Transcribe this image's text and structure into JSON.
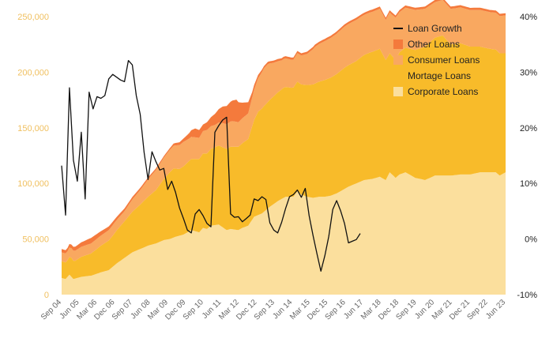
{
  "chart_data": {
    "type": "area",
    "x": [
      "Sep 04",
      "Jun 05",
      "Mar 06",
      "Dec 06",
      "Sep 07",
      "Jun 08",
      "Mar 09",
      "Dec 09",
      "Sep 10",
      "Jun 11",
      "Mar 12",
      "Dec 12",
      "Sep 13",
      "Jun 14",
      "Mar 15",
      "Dec 15",
      "Sep 16",
      "Jun 17",
      "Mar 18",
      "Dec 18",
      "Sep 19",
      "Jun 20",
      "Mar 21",
      "Dec 21",
      "Sep 22",
      "Jun 23"
    ],
    "ylim_left": [
      0,
      250000
    ],
    "yticks_left": [
      "0",
      "50,000",
      "100,000",
      "150,000",
      "200,000",
      "250,000"
    ],
    "ylim_right": [
      -10,
      40
    ],
    "yticks_right": [
      "-10%",
      "0%",
      "10%",
      "20%",
      "30%",
      "40%"
    ],
    "grid": false,
    "legend_placement": "top-right",
    "stack_order": [
      "Corporate Loans",
      "Mortage Loans",
      "Consumer Loans",
      "Other Loans"
    ],
    "series": [
      {
        "name": "Other Loans",
        "kind": "area",
        "color": "#f47a3c",
        "points": [
          [
            0,
            3000
          ],
          [
            3,
            3000
          ],
          [
            6,
            3500
          ],
          [
            10,
            4000
          ],
          [
            15,
            5000
          ],
          [
            20,
            4000
          ],
          [
            26,
            3000
          ],
          [
            32,
            2500
          ],
          [
            40,
            2000
          ],
          [
            50,
            1500
          ],
          [
            55,
            1500
          ],
          [
            62,
            3000
          ],
          [
            65,
            5000
          ],
          [
            68,
            8000
          ],
          [
            72,
            6000
          ],
          [
            76,
            8000
          ],
          [
            80,
            12000
          ],
          [
            82,
            15000
          ],
          [
            85,
            17000
          ],
          [
            89,
            20000
          ],
          [
            90,
            18000
          ],
          [
            92,
            14000
          ],
          [
            95,
            10000
          ],
          [
            97,
            5000
          ],
          [
            100,
            3000
          ],
          [
            103,
            2000
          ]
        ]
      },
      {
        "name": "Consumer Loans",
        "kind": "area",
        "color": "#f9a860",
        "points": [
          [
            0,
            8000
          ],
          [
            3,
            8000
          ],
          [
            6,
            9000
          ],
          [
            10,
            9000
          ],
          [
            15,
            9000
          ],
          [
            20,
            9000
          ],
          [
            26,
            9500
          ],
          [
            32,
            9000
          ],
          [
            40,
            13000
          ],
          [
            48,
            18000
          ],
          [
            55,
            20000
          ],
          [
            62,
            22000
          ],
          [
            65,
            20000
          ],
          [
            70,
            19000
          ],
          [
            74,
            21000
          ],
          [
            78,
            20000
          ],
          [
            83,
            22000
          ],
          [
            87,
            23000
          ],
          [
            90,
            22000
          ],
          [
            95,
            23000
          ],
          [
            100,
            30000
          ],
          [
            103,
            34000
          ],
          [
            105,
            34000
          ],
          [
            108,
            30000
          ],
          [
            112,
            26000
          ],
          [
            118,
            25000
          ],
          [
            122,
            26000
          ],
          [
            125,
            28000
          ],
          [
            129,
            33000
          ],
          [
            134,
            35000
          ],
          [
            139,
            36000
          ],
          [
            144,
            37000
          ],
          [
            150,
            37000
          ],
          [
            154,
            36000
          ],
          [
            158,
            36000
          ],
          [
            162,
            36000
          ],
          [
            165,
            36000
          ],
          [
            168,
            37000
          ],
          [
            170,
            38000
          ],
          [
            172,
            36000
          ],
          [
            175,
            36000
          ],
          [
            180,
            36000
          ],
          [
            185,
            34000
          ],
          [
            190,
            32000
          ],
          [
            200,
            32000
          ],
          [
            210,
            33000
          ],
          [
            220,
            33000
          ],
          [
            226,
            34000
          ]
        ]
      },
      {
        "name": "Mortage Loans",
        "kind": "area",
        "color": "#f8bb2a",
        "points": [
          [
            0,
            15000
          ],
          [
            3,
            15000
          ],
          [
            5,
            17000
          ],
          [
            7,
            16000
          ],
          [
            10,
            18000
          ],
          [
            15,
            20000
          ],
          [
            20,
            24000
          ],
          [
            26,
            28000
          ],
          [
            32,
            33000
          ],
          [
            40,
            40000
          ],
          [
            48,
            48000
          ],
          [
            55,
            60000
          ],
          [
            57,
            62000
          ],
          [
            60,
            60000
          ],
          [
            63,
            62000
          ],
          [
            66,
            64000
          ],
          [
            70,
            66000
          ],
          [
            74,
            68000
          ],
          [
            78,
            70000
          ],
          [
            82,
            72000
          ],
          [
            86,
            74000
          ],
          [
            90,
            75000
          ],
          [
            95,
            78000
          ],
          [
            100,
            93000
          ],
          [
            103,
            95000
          ],
          [
            108,
            97000
          ],
          [
            113,
            99000
          ],
          [
            117,
            98000
          ],
          [
            122,
            99000
          ],
          [
            126,
            101000
          ],
          [
            130,
            103000
          ],
          [
            134,
            105000
          ],
          [
            139,
            107000
          ],
          [
            144,
            109000
          ],
          [
            150,
            110000
          ],
          [
            153,
            112000
          ],
          [
            157,
            114000
          ],
          [
            162,
            115000
          ],
          [
            165,
            108000
          ],
          [
            167,
            107000
          ],
          [
            170,
            106000
          ],
          [
            172,
            110000
          ],
          [
            175,
            112000
          ],
          [
            180,
            115000
          ],
          [
            185,
            120000
          ],
          [
            190,
            124000
          ],
          [
            194,
            126000
          ],
          [
            198,
            118000
          ],
          [
            203,
            118000
          ],
          [
            208,
            115000
          ],
          [
            213,
            113000
          ],
          [
            218,
            111000
          ],
          [
            223,
            110000
          ],
          [
            226,
            107000
          ]
        ]
      },
      {
        "name": "Corporate Loans",
        "kind": "area",
        "color": "#fbdf9d",
        "points": [
          [
            0,
            15000
          ],
          [
            2,
            14000
          ],
          [
            4,
            18000
          ],
          [
            6,
            14000
          ],
          [
            10,
            16000
          ],
          [
            15,
            17000
          ],
          [
            20,
            20000
          ],
          [
            24,
            22000
          ],
          [
            28,
            28000
          ],
          [
            32,
            33000
          ],
          [
            36,
            38000
          ],
          [
            40,
            41000
          ],
          [
            44,
            44000
          ],
          [
            48,
            46000
          ],
          [
            52,
            49000
          ],
          [
            55,
            50000
          ],
          [
            58,
            52000
          ],
          [
            62,
            54000
          ],
          [
            66,
            58000
          ],
          [
            70,
            56000
          ],
          [
            72,
            60000
          ],
          [
            74,
            59000
          ],
          [
            76,
            62000
          ],
          [
            80,
            63000
          ],
          [
            84,
            58000
          ],
          [
            86,
            59000
          ],
          [
            90,
            58000
          ],
          [
            92,
            60000
          ],
          [
            95,
            62000
          ],
          [
            98,
            70000
          ],
          [
            102,
            73000
          ],
          [
            106,
            79000
          ],
          [
            110,
            84000
          ],
          [
            114,
            88000
          ],
          [
            118,
            88000
          ],
          [
            120,
            93000
          ],
          [
            122,
            90000
          ],
          [
            125,
            88000
          ],
          [
            128,
            87000
          ],
          [
            131,
            88000
          ],
          [
            134,
            88000
          ],
          [
            137,
            89000
          ],
          [
            140,
            91000
          ],
          [
            143,
            94000
          ],
          [
            146,
            97000
          ],
          [
            150,
            100000
          ],
          [
            154,
            103000
          ],
          [
            158,
            104000
          ],
          [
            162,
            106000
          ],
          [
            165,
            103000
          ],
          [
            167,
            110000
          ],
          [
            170,
            105000
          ],
          [
            172,
            108000
          ],
          [
            175,
            110000
          ],
          [
            180,
            105000
          ],
          [
            185,
            103000
          ],
          [
            190,
            107000
          ],
          [
            194,
            107000
          ],
          [
            198,
            107000
          ],
          [
            203,
            108000
          ],
          [
            208,
            108000
          ],
          [
            213,
            110000
          ],
          [
            218,
            110000
          ],
          [
            221,
            110000
          ],
          [
            223,
            107000
          ],
          [
            226,
            110000
          ]
        ]
      },
      {
        "name": "Loan Growth",
        "kind": "line",
        "axis": "right",
        "color": "#111111",
        "points": [
          [
            0,
            13.2
          ],
          [
            2,
            4.3
          ],
          [
            4,
            27.2
          ],
          [
            6,
            14.2
          ],
          [
            8,
            10.4
          ],
          [
            10,
            19.2
          ],
          [
            12,
            7.2
          ],
          [
            14,
            26.4
          ],
          [
            16,
            23.4
          ],
          [
            18,
            25.6
          ],
          [
            20,
            25.3
          ],
          [
            22,
            25.8
          ],
          [
            24,
            28.8
          ],
          [
            26,
            29.6
          ],
          [
            28,
            29.1
          ],
          [
            30,
            28.6
          ],
          [
            32,
            28.3
          ],
          [
            34,
            32.1
          ],
          [
            36,
            31.3
          ],
          [
            38,
            25.8
          ],
          [
            40,
            22.4
          ],
          [
            42,
            15.6
          ],
          [
            44,
            10.7
          ],
          [
            46,
            15.7
          ],
          [
            48,
            13.9
          ],
          [
            50,
            12.4
          ],
          [
            52,
            12.7
          ],
          [
            54,
            8.9
          ],
          [
            56,
            10.4
          ],
          [
            58,
            8.4
          ],
          [
            60,
            5.6
          ],
          [
            62,
            3.7
          ],
          [
            64,
            1.6
          ],
          [
            66,
            1.1
          ],
          [
            68,
            4.5
          ],
          [
            70,
            5.3
          ],
          [
            72,
            4.2
          ],
          [
            74,
            2.8
          ],
          [
            76,
            2.2
          ],
          [
            78,
            19.2
          ],
          [
            80,
            20.4
          ],
          [
            82,
            21.4
          ],
          [
            84,
            21.9
          ],
          [
            86,
            4.5
          ],
          [
            88,
            3.9
          ],
          [
            90,
            4.0
          ],
          [
            92,
            3.1
          ],
          [
            94,
            3.7
          ],
          [
            96,
            4.3
          ],
          [
            98,
            7.2
          ],
          [
            100,
            6.9
          ],
          [
            102,
            7.6
          ],
          [
            104,
            7.1
          ],
          [
            106,
            2.9
          ],
          [
            108,
            1.6
          ],
          [
            110,
            1.1
          ],
          [
            112,
            3.0
          ],
          [
            114,
            5.5
          ],
          [
            116,
            7.6
          ],
          [
            118,
            8.0
          ],
          [
            120,
            8.8
          ],
          [
            122,
            7.5
          ],
          [
            124,
            9.1
          ],
          [
            126,
            4.2
          ],
          [
            128,
            0.6
          ],
          [
            130,
            -2.7
          ],
          [
            132,
            -5.8
          ],
          [
            134,
            -3.0
          ],
          [
            136,
            0.5
          ],
          [
            138,
            5.3
          ],
          [
            140,
            6.9
          ],
          [
            142,
            5.1
          ],
          [
            144,
            2.8
          ],
          [
            146,
            -0.7
          ],
          [
            148,
            -0.4
          ],
          [
            150,
            -0.1
          ],
          [
            152,
            1.0
          ]
        ]
      }
    ]
  }
}
